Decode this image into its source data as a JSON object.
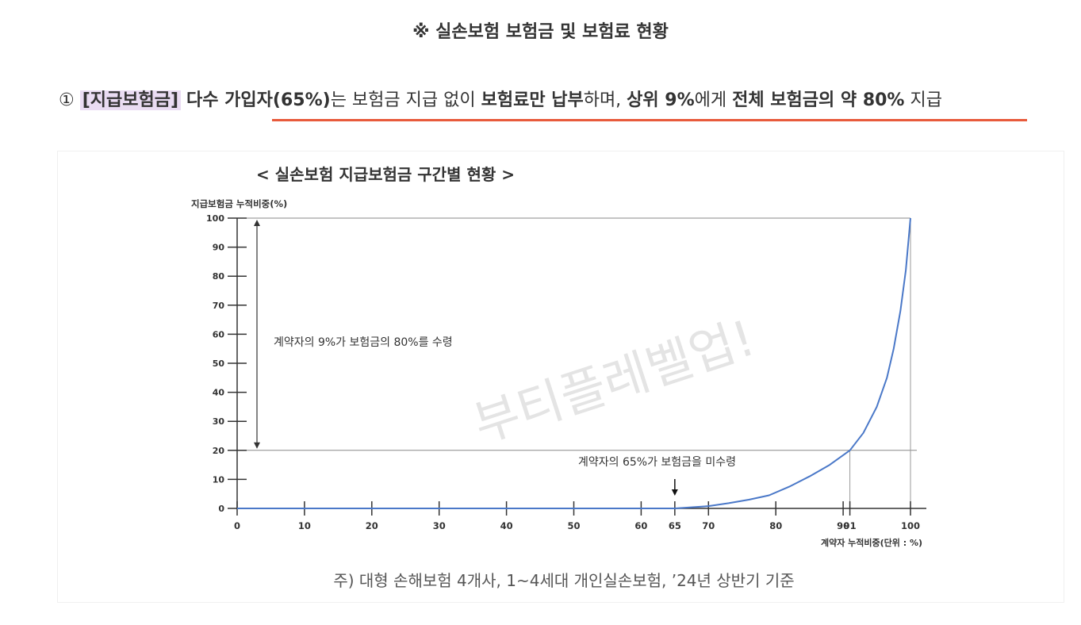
{
  "header": {
    "title": "※ 실손보험 보험금 및 보험료 현황"
  },
  "headline": {
    "index": "①",
    "tag": "[지급보험금]",
    "seg1": "다수 가입자(65%)",
    "seg2": "는 보험금 지급 없이 ",
    "seg3": "보험료만 납부",
    "seg4": "하며, ",
    "seg5": "상위 9%",
    "seg6": "에게 ",
    "seg7": "전체 보험금의 약 80%",
    "seg8": " 지급"
  },
  "watermark": "부티플레벨업!",
  "colors": {
    "curve": "#4a78c8",
    "underline": "#e85a3c",
    "tag_bg": "#eadcf3"
  },
  "chart_data": {
    "type": "line",
    "title": "< 실손보험 지급보험금 구간별 현황 >",
    "ylabel": "지급보험금 누적비중(%)",
    "xlabel": "계약자 누적비중(단위 : %)",
    "xlim": [
      0,
      100
    ],
    "ylim": [
      0,
      100
    ],
    "x_ticks": [
      0,
      10,
      20,
      30,
      40,
      50,
      60,
      65,
      70,
      80,
      90,
      91,
      100
    ],
    "y_ticks": [
      0,
      10,
      20,
      30,
      40,
      50,
      60,
      70,
      80,
      90,
      100
    ],
    "series": [
      {
        "x": [
          0,
          10,
          20,
          30,
          40,
          50,
          60,
          65,
          67,
          70,
          73,
          76,
          79,
          82,
          85,
          88,
          91,
          93,
          95,
          96.5,
          97.5,
          98.5,
          99.3,
          100
        ],
        "y": [
          0,
          0,
          0,
          0,
          0,
          0,
          0,
          0,
          0.3,
          0.8,
          1.8,
          3,
          4.5,
          7.5,
          11,
          15,
          20,
          26,
          35,
          45,
          55,
          68,
          82,
          100
        ]
      }
    ],
    "annotations": {
      "top_group": "계약자의 9%가 보험금의 80%를 수령",
      "non_recipients": "계약자의 65%가 보험금을 미수령"
    },
    "footnote": "주) 대형 손해보험 4개사, 1~4세대 개인실손보험, ’24년 상반기 기준"
  }
}
